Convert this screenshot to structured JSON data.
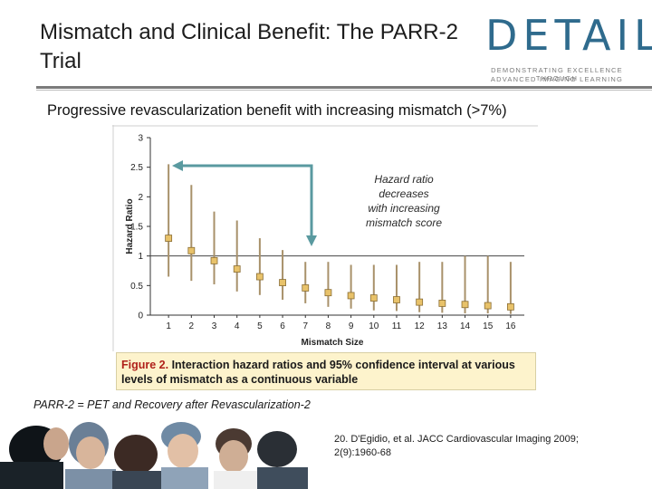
{
  "slide": {
    "title": "Mismatch and Clinical Benefit: The PARR-2 Trial",
    "subtitle": "Progressive revascularization benefit with increasing mismatch (>7%)",
    "logo": {
      "word": "DETAIL",
      "tagline1": "DEMONSTRATING EXCELLENCE THROUGH",
      "tagline2": "ADVANCED IMAGING LEARNING",
      "color": "#2f6b8d"
    },
    "caption_label": "Figure 2.",
    "caption_text": " Interaction hazard ratios and 95% confidence interval at various levels of mismatch as a continuous variable",
    "abbreviation": "PARR-2 = PET and Recovery after Revascularization-2",
    "citation_line1": "20. D'Egidio, et al. JACC Cardiovascular Imaging 2009;",
    "citation_line2": "2(9):1960-68"
  },
  "chart_data": {
    "type": "scatter",
    "xlabel": "Mismatch Size",
    "ylabel": "Hazard Ratio",
    "xlim": [
      0.2,
      16.6
    ],
    "ylim": [
      0,
      3
    ],
    "xticks": [
      1,
      2,
      3,
      4,
      5,
      6,
      7,
      8,
      9,
      10,
      11,
      12,
      13,
      14,
      15,
      16
    ],
    "yticks": [
      0,
      0.5,
      1,
      1.5,
      2,
      2.5,
      3
    ],
    "reference_line": 1,
    "marker_color": "#e8c26a",
    "errorbar_color": "#a8916a",
    "annotation": [
      "Hazard ratio",
      "decreases",
      "with increasing",
      "mismatch score"
    ],
    "annotation_color": "#5a9aa0",
    "x": [
      1,
      2,
      3,
      4,
      5,
      6,
      7,
      8,
      9,
      10,
      11,
      12,
      13,
      14,
      15,
      16
    ],
    "hr": [
      1.3,
      1.09,
      0.92,
      0.78,
      0.65,
      0.55,
      0.46,
      0.38,
      0.33,
      0.29,
      0.26,
      0.22,
      0.2,
      0.18,
      0.16,
      0.14
    ],
    "lower": [
      0.65,
      0.58,
      0.52,
      0.4,
      0.34,
      0.26,
      0.2,
      0.14,
      0.11,
      0.08,
      0.07,
      0.05,
      0.04,
      0.03,
      0.03,
      0.02
    ],
    "upper": [
      2.55,
      2.2,
      1.75,
      1.6,
      1.3,
      1.1,
      0.9,
      0.9,
      0.85,
      0.85,
      0.85,
      0.9,
      0.9,
      1.0,
      1.0,
      0.9
    ]
  }
}
